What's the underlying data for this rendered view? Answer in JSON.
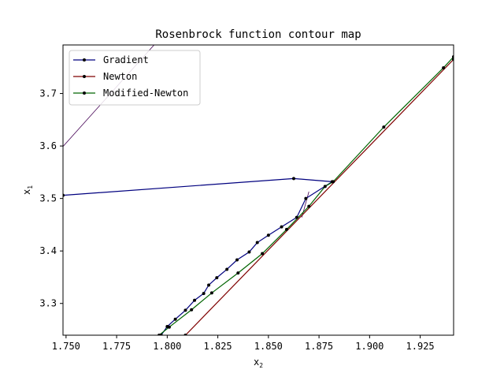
{
  "chart_data": {
    "type": "line",
    "title": "Rosenbrock function contour map",
    "xlabel": "x",
    "xlabel_sub": "2",
    "ylabel": "x",
    "ylabel_sub": "1",
    "xlim": [
      1.7485,
      1.9415
    ],
    "ylim": [
      3.2395,
      3.7925
    ],
    "xticks": [
      1.75,
      1.775,
      1.8,
      1.825,
      1.85,
      1.875,
      1.9,
      1.925
    ],
    "xtick_labels": [
      "1.750",
      "1.775",
      "1.800",
      "1.825",
      "1.850",
      "1.875",
      "1.900",
      "1.925"
    ],
    "yticks": [
      3.3,
      3.4,
      3.5,
      3.6,
      3.7
    ],
    "ytick_labels": [
      "3.3",
      "3.4",
      "3.5",
      "3.6",
      "3.7"
    ],
    "grid": false,
    "legend_position": "top-left",
    "contours": [
      {
        "color": "#440154",
        "points": [
          [
            1.7485,
            3.599
          ],
          [
            1.7935,
            3.7925
          ]
        ]
      },
      {
        "color": "#440154",
        "points": [
          [
            1.8665,
            3.464
          ],
          [
            1.87,
            3.513
          ]
        ]
      }
    ],
    "series": [
      {
        "name": "Gradient",
        "color": "#00007f",
        "markers": true,
        "points": [
          [
            1.7485,
            3.506
          ],
          [
            1.8625,
            3.538
          ],
          [
            1.8815,
            3.532
          ],
          [
            1.8685,
            3.5
          ],
          [
            1.864,
            3.464
          ],
          [
            1.8565,
            3.446
          ],
          [
            1.85,
            3.43
          ],
          [
            1.8445,
            3.416
          ],
          [
            1.8405,
            3.398
          ],
          [
            1.8345,
            3.383
          ],
          [
            1.8295,
            3.365
          ],
          [
            1.8245,
            3.349
          ],
          [
            1.8205,
            3.335
          ],
          [
            1.818,
            3.319
          ],
          [
            1.8135,
            3.306
          ],
          [
            1.809,
            3.287
          ],
          [
            1.804,
            3.27
          ],
          [
            1.8,
            3.256
          ],
          [
            1.797,
            3.2395
          ]
        ]
      },
      {
        "name": "Newton",
        "color": "#7f0000",
        "markers": true,
        "points": [
          [
            1.809,
            3.2395
          ],
          [
            1.9415,
            3.765
          ]
        ]
      },
      {
        "name": "Modified-Newton",
        "color": "#006400",
        "markers": true,
        "points": [
          [
            1.796,
            3.2395
          ],
          [
            1.801,
            3.255
          ],
          [
            1.812,
            3.288
          ],
          [
            1.822,
            3.32
          ],
          [
            1.835,
            3.358
          ],
          [
            1.847,
            3.395
          ],
          [
            1.859,
            3.441
          ],
          [
            1.87,
            3.485
          ],
          [
            1.878,
            3.523
          ],
          [
            1.882,
            3.532
          ],
          [
            1.907,
            3.636
          ],
          [
            1.9365,
            3.749
          ],
          [
            1.9415,
            3.77
          ]
        ]
      }
    ]
  }
}
